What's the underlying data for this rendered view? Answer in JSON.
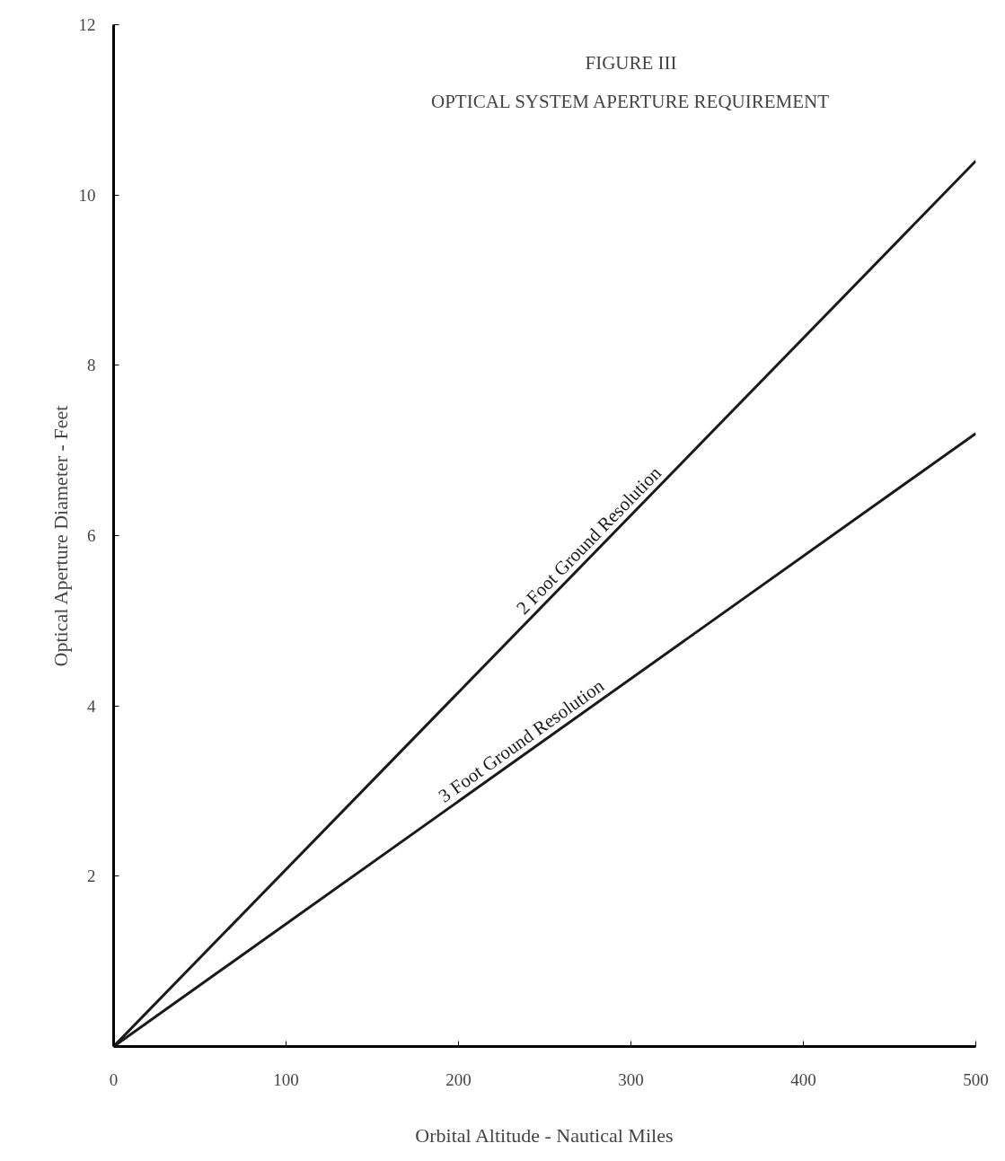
{
  "chart_data": {
    "type": "line",
    "title": "FIGURE III",
    "subtitle": "OPTICAL SYSTEM APERTURE REQUIREMENT",
    "xlabel": "Orbital Altitude - Nautical Miles",
    "ylabel": "Optical Aperture Diameter - Feet",
    "x": [
      0,
      500
    ],
    "series": [
      {
        "name": "2 Foot Ground Resolution",
        "color": "#1a1a1a",
        "values": [
          0,
          10.4
        ]
      },
      {
        "name": "3 Foot Ground Resolution",
        "color": "#1a1a1a",
        "values": [
          0,
          7.2
        ]
      }
    ],
    "xlim": [
      0,
      500
    ],
    "ylim": [
      0,
      12
    ],
    "xticks": [
      0,
      100,
      200,
      300,
      400,
      500
    ],
    "yticks": [
      2,
      4,
      6,
      8,
      10,
      12
    ],
    "grid": false,
    "marker": "none",
    "line_style": "solid"
  }
}
